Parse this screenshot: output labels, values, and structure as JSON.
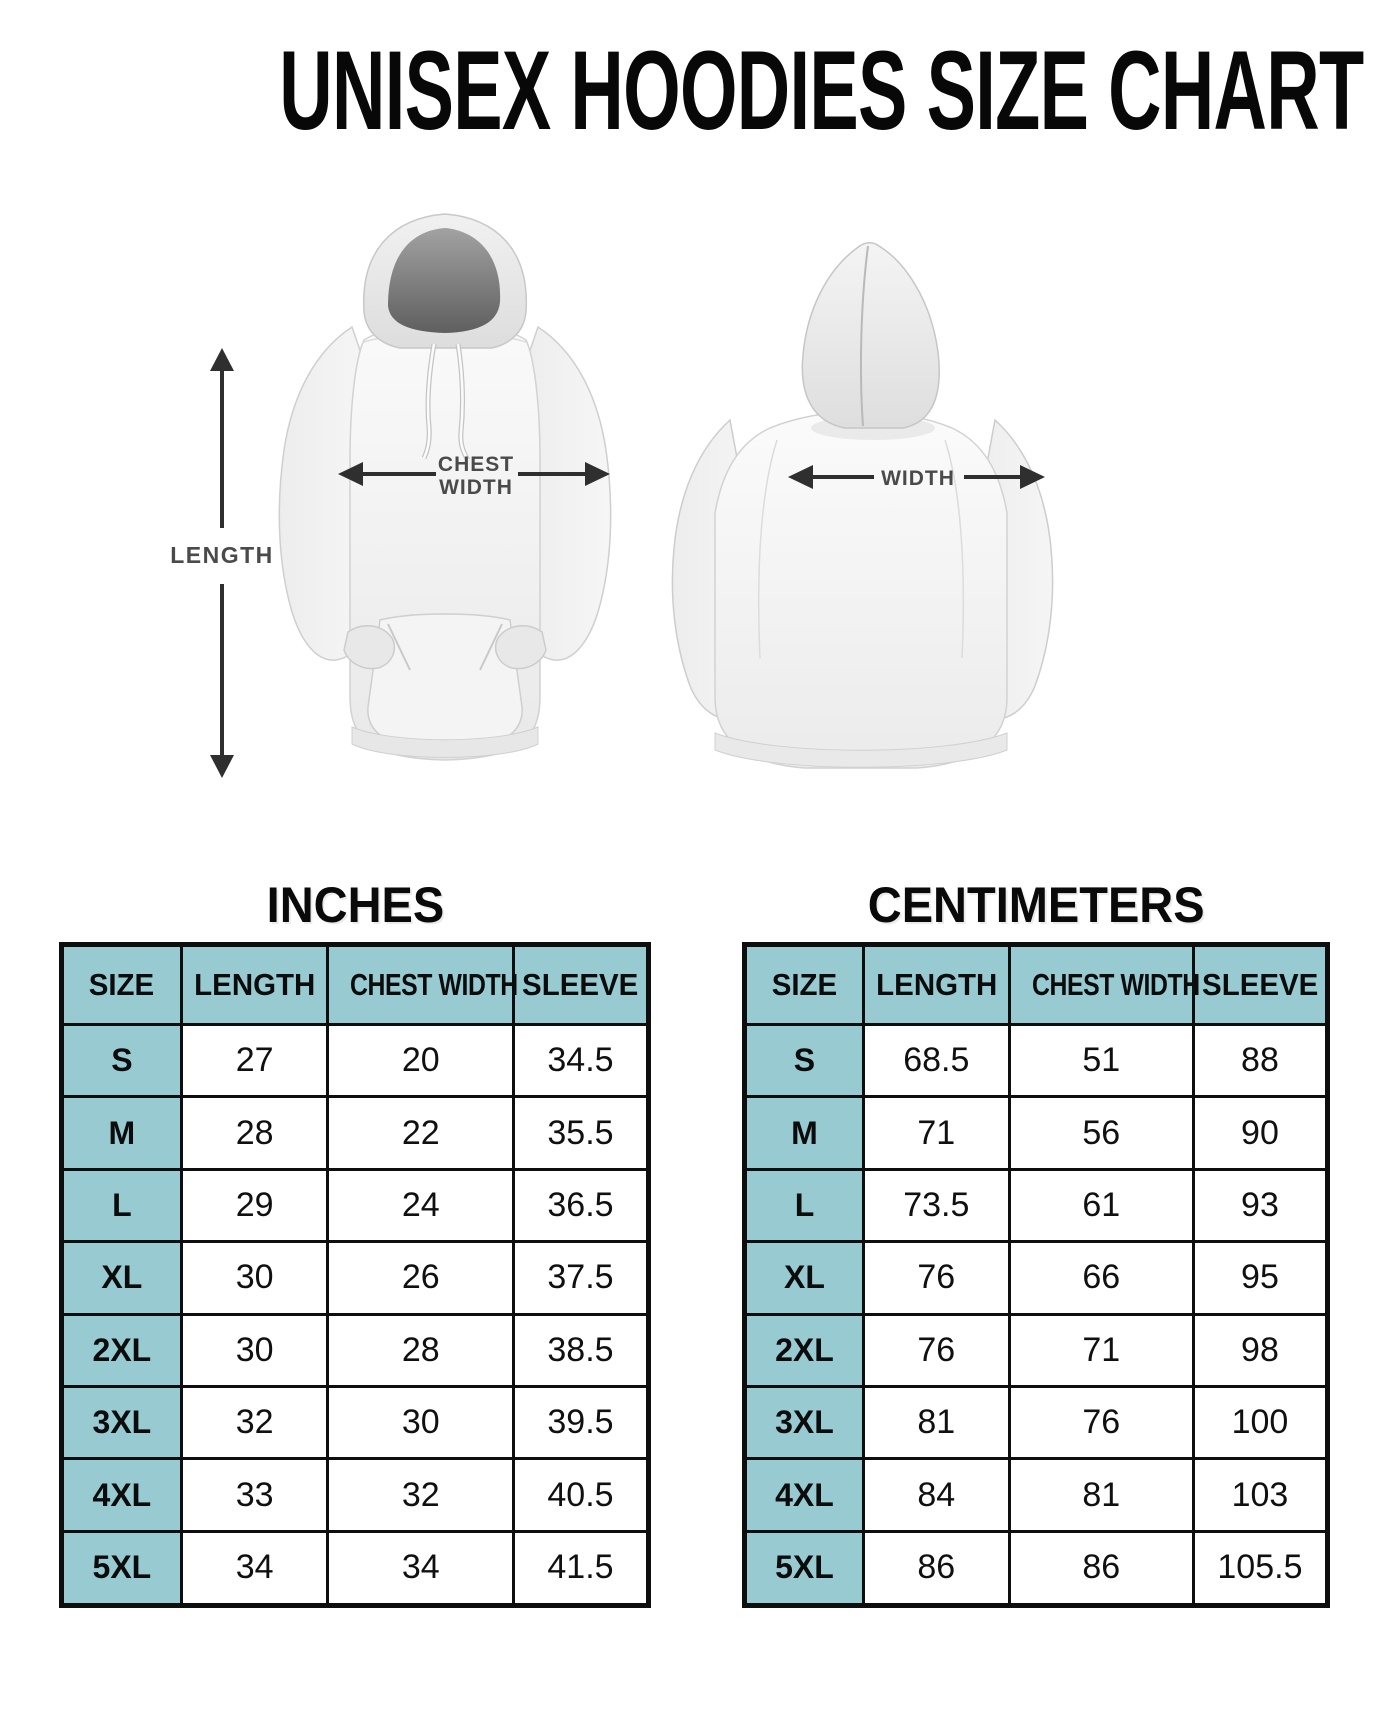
{
  "page": {
    "title": "UNISEX HOODIES SIZE CHART"
  },
  "diagram": {
    "length_label": "LENGTH",
    "chest_width_label_line1": "CHEST",
    "chest_width_label_line2": "WIDTH",
    "back_width_label": "WIDTH"
  },
  "size_tables": [
    {
      "heading": "INCHES",
      "columns": [
        "SIZE",
        "LENGTH",
        "CHEST WIDTH",
        "SLEEVE"
      ],
      "rows": [
        [
          "S",
          "27",
          "20",
          "34.5"
        ],
        [
          "M",
          "28",
          "22",
          "35.5"
        ],
        [
          "L",
          "29",
          "24",
          "36.5"
        ],
        [
          "XL",
          "30",
          "26",
          "37.5"
        ],
        [
          "2XL",
          "30",
          "28",
          "38.5"
        ],
        [
          "3XL",
          "32",
          "30",
          "39.5"
        ],
        [
          "4XL",
          "33",
          "32",
          "40.5"
        ],
        [
          "5XL",
          "34",
          "34",
          "41.5"
        ]
      ]
    },
    {
      "heading": "CENTIMETERS",
      "columns": [
        "SIZE",
        "LENGTH",
        "CHEST WIDTH",
        "SLEEVE"
      ],
      "rows": [
        [
          "S",
          "68.5",
          "51",
          "88"
        ],
        [
          "M",
          "71",
          "56",
          "90"
        ],
        [
          "L",
          "73.5",
          "61",
          "93"
        ],
        [
          "XL",
          "76",
          "66",
          "95"
        ],
        [
          "2XL",
          "76",
          "71",
          "98"
        ],
        [
          "3XL",
          "81",
          "76",
          "100"
        ],
        [
          "4XL",
          "84",
          "81",
          "103"
        ],
        [
          "5XL",
          "86",
          "86",
          "105.5"
        ]
      ]
    }
  ],
  "colors": {
    "header_fill": "#97cbd1",
    "table_border": "#0e0e0e",
    "arrow": "#2f2f2f",
    "measure_label_text": "#4a4a4a"
  }
}
